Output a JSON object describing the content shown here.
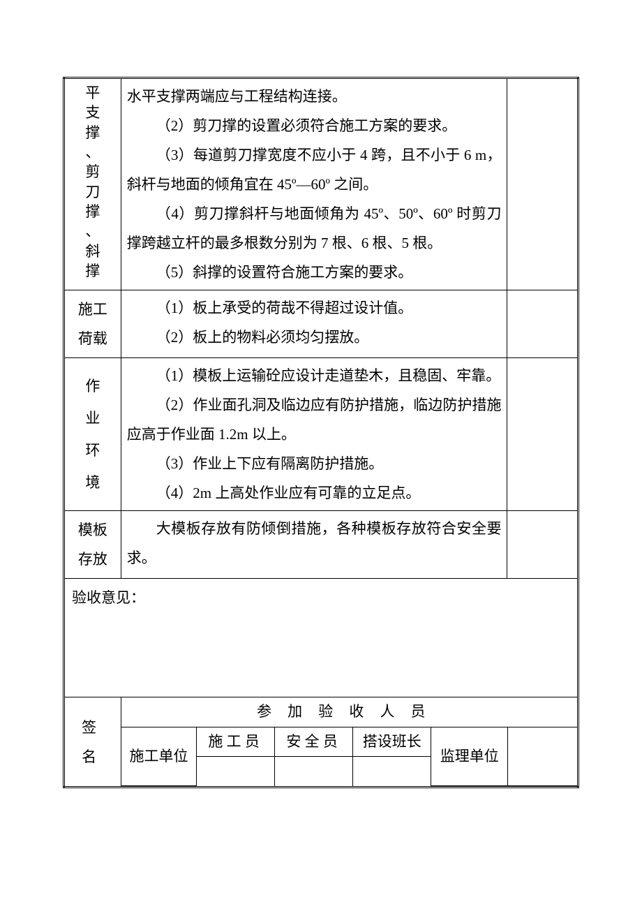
{
  "rows": [
    {
      "label": "平支撑、剪刀撑、斜撑",
      "label_vertical": true,
      "content": [
        {
          "cls": "para-first",
          "text": "水平支撑两端应与工程结构连接。"
        },
        {
          "cls": "para",
          "text": "（2）剪刀撑的设置必须符合施工方案的要求。"
        },
        {
          "cls": "para",
          "text": "（3）每道剪刀撑宽度不应小于 4 跨，且不小于 6 m，斜杆与地面的倾角宜在 45º—60º 之间。"
        },
        {
          "cls": "para",
          "text": "（4）剪刀撑斜杆与地面倾角为 45º、50º、60º 时剪刀撑跨越立杆的最多根数分别为 7 根、6 根、5 根。"
        },
        {
          "cls": "para",
          "text": "（5）斜撑的设置符合施工方案的要求。"
        }
      ]
    },
    {
      "label": "施工荷载",
      "content": [
        {
          "cls": "para",
          "text": "（1）板上承受的荷哉不得超过设计值。"
        },
        {
          "cls": "para",
          "text": "（2）板上的物料必须均匀摆放。"
        }
      ]
    },
    {
      "label": "作业环境",
      "label_vertical": true,
      "label_spaced": true,
      "content": [
        {
          "cls": "para",
          "text": "（1）模板上运输砼应设计走道垫木，且稳固、牢靠。"
        },
        {
          "cls": "para",
          "text": "（2）作业面孔洞及临边应有防护措施，临边防护措施应高于作业面 1.2m 以上。"
        },
        {
          "cls": "para",
          "text": "（3）作业上下应有隔离防护措施。"
        },
        {
          "cls": "para",
          "text": "（4）2m 上高处作业应有可靠的立足点。"
        }
      ]
    },
    {
      "label": "模板存放",
      "content": [
        {
          "cls": "para",
          "text": "大模板存放有防倾倒措施，各种模板存放符合安全要求。"
        }
      ]
    }
  ],
  "opinion_label": "验收意见：",
  "signature_label": "签名",
  "participants_header": "参加验收人员",
  "sig_roles": {
    "construction_unit": "施工单位",
    "constructor": "施工员",
    "safety_officer": "安全员",
    "setup_leader": "搭设班长",
    "supervision_unit": "监理单位"
  },
  "colors": {
    "text": "#000000",
    "background": "#ffffff",
    "border": "#000000"
  },
  "fonts": {
    "body_family": "SimSun",
    "body_size_pt": 16
  }
}
